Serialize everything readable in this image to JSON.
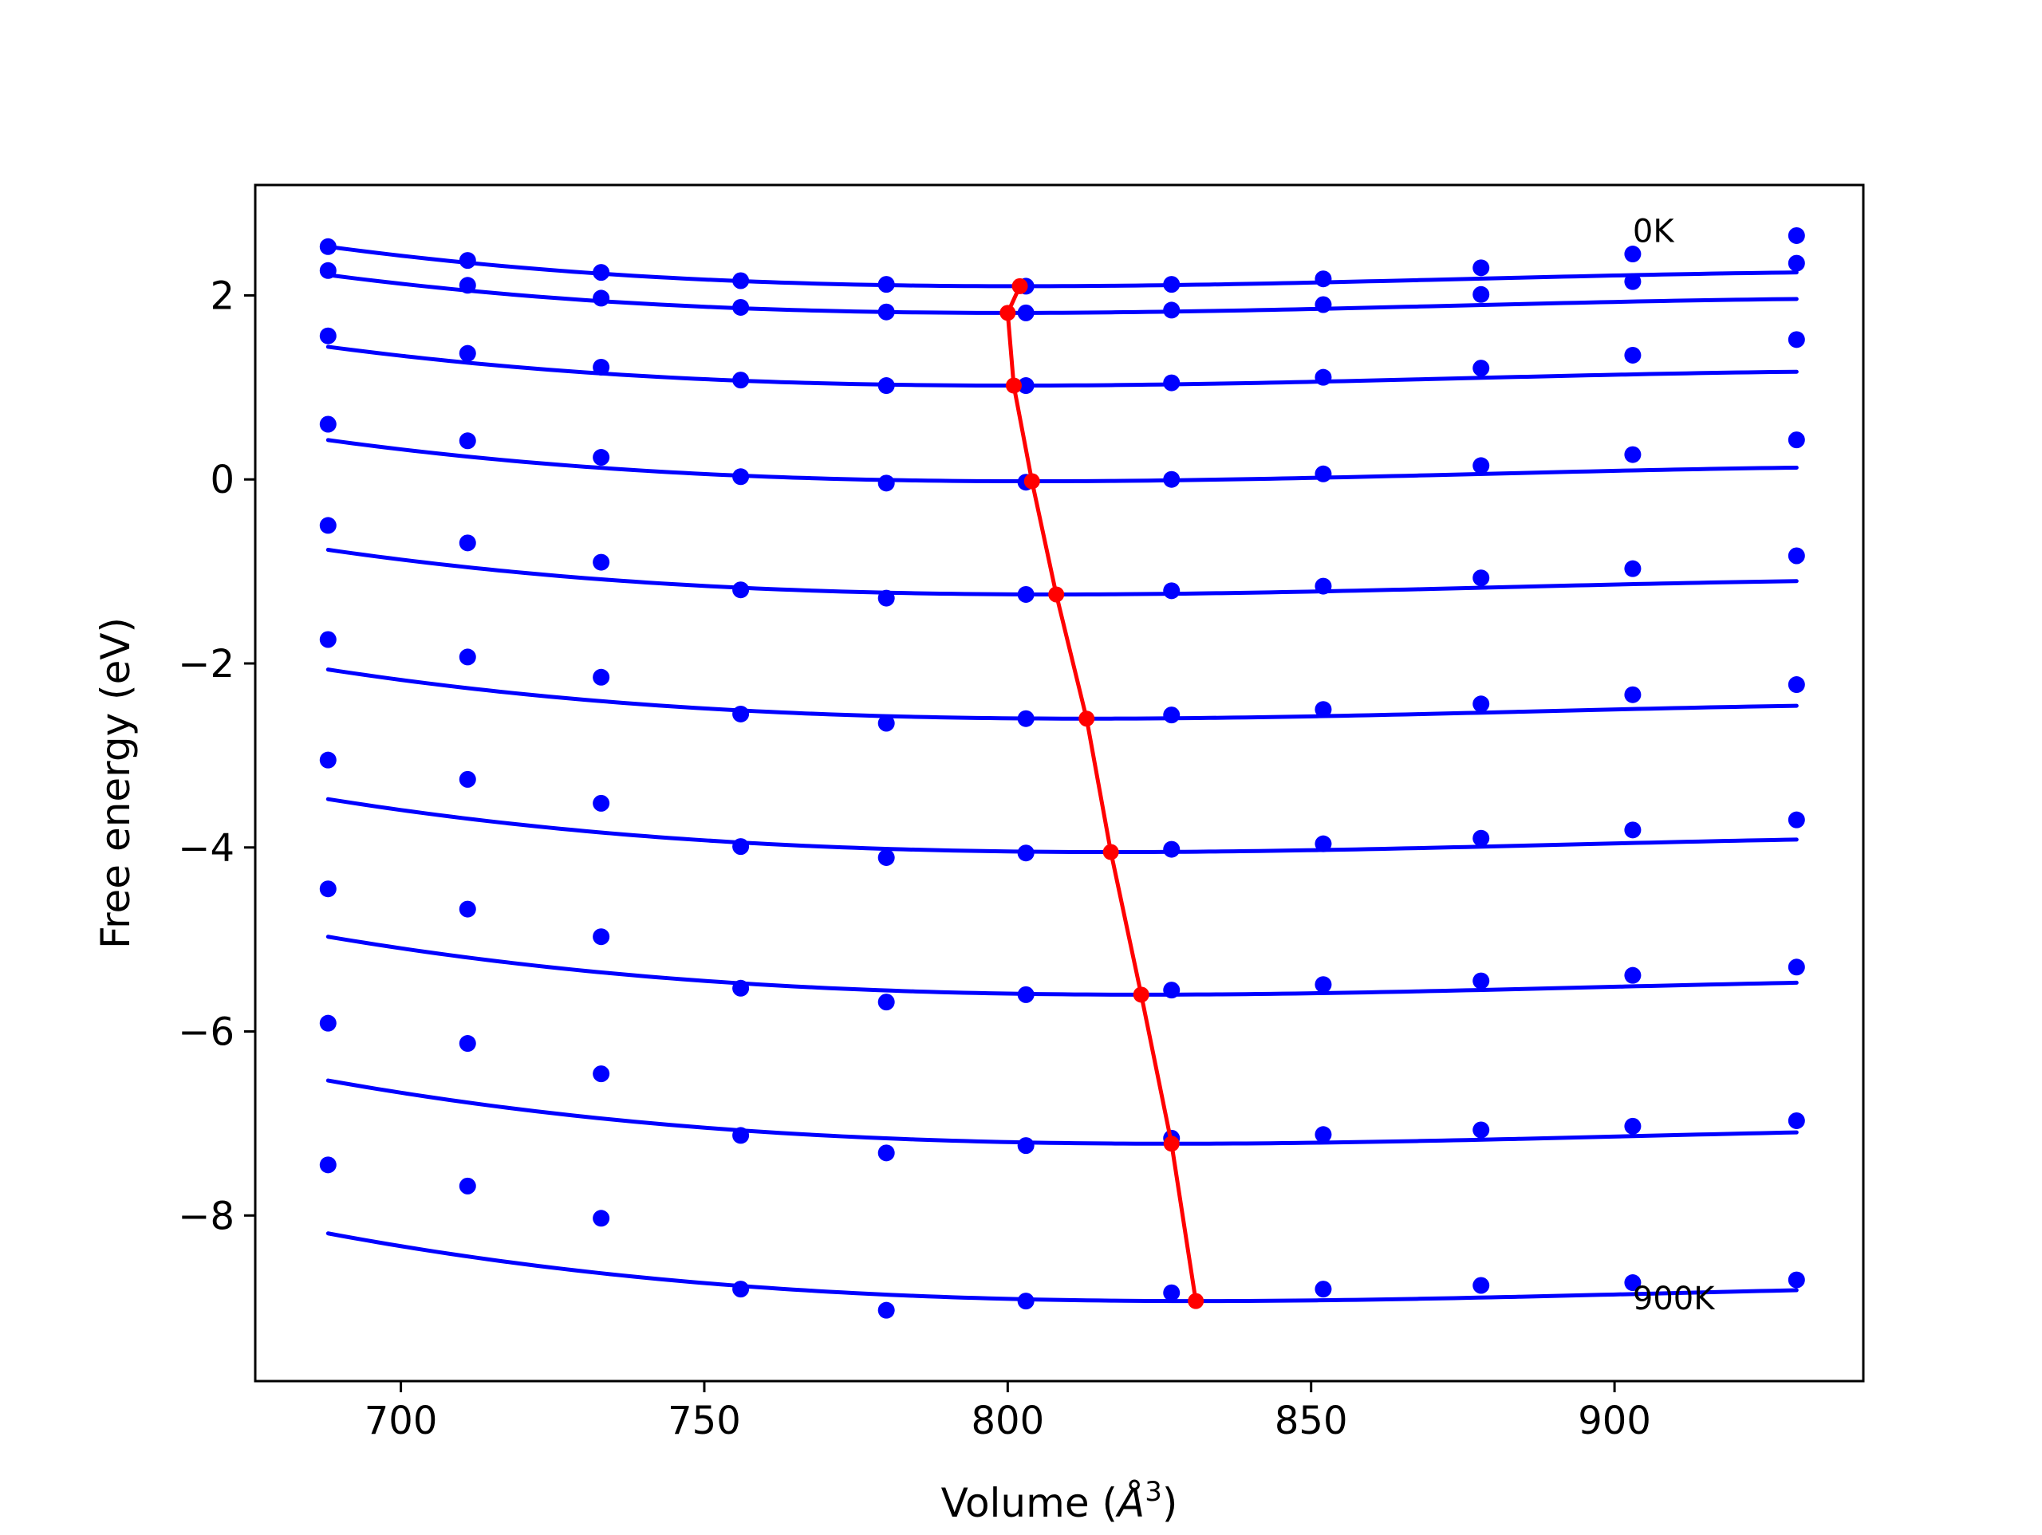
{
  "chart_data": {
    "type": "line",
    "title": "",
    "xlabel": "Volume ($\\AA^3$)",
    "xlabel_display": {
      "prefix": "Volume (",
      "symbol": "Å",
      "superscript": "3",
      "suffix": ")"
    },
    "ylabel": "Free energy (eV)",
    "xlim": [
      676,
      941
    ],
    "ylim": [
      -9.8,
      3.2
    ],
    "xticks": [
      700,
      750,
      800,
      850,
      900
    ],
    "yticks": [
      -8,
      -6,
      -4,
      -2,
      0,
      2
    ],
    "ytick_labels": [
      "−8",
      "−6",
      "−4",
      "−2",
      "0",
      "2"
    ],
    "grid": false,
    "legend": null,
    "colors": {
      "isotherm": "#0000ff",
      "minimum": "#ff0000",
      "axes": "#000000"
    },
    "annotations": [
      {
        "text": "0K",
        "x": 903,
        "y": 2.7
      },
      {
        "text": "900K",
        "x": 903,
        "y": -8.9
      }
    ],
    "x": [
      688,
      711,
      733,
      756,
      780,
      803,
      827,
      852,
      878,
      903,
      930
    ],
    "series": [
      {
        "points": [
          2.53,
          2.38,
          2.25,
          2.16,
          2.12,
          2.1,
          2.12,
          2.18,
          2.3,
          2.45,
          2.65
        ],
        "fit": {
          "vmin": 802,
          "emin": 2.1,
          "curv": 2.18e-05,
          "cub": 9.9e-08
        }
      },
      {
        "points": [
          2.27,
          2.11,
          1.97,
          1.87,
          1.82,
          1.81,
          1.84,
          1.9,
          2.01,
          2.15,
          2.35
        ],
        "fit": {
          "vmin": 800,
          "emin": 1.81,
          "curv": 2.18e-05,
          "cub": 9.9e-08
        }
      },
      {
        "points": [
          1.56,
          1.37,
          1.22,
          1.08,
          1.02,
          1.02,
          1.05,
          1.11,
          1.21,
          1.35,
          1.52
        ],
        "fit": {
          "vmin": 801,
          "emin": 1.02,
          "curv": 2.18e-05,
          "cub": 9.9e-08
        }
      },
      {
        "points": [
          0.6,
          0.42,
          0.24,
          0.03,
          -0.04,
          -0.03,
          0.0,
          0.06,
          0.15,
          0.27,
          0.43
        ],
        "fit": {
          "vmin": 804,
          "emin": -0.02,
          "curv": 2.18e-05,
          "cub": 9.9e-08
        }
      },
      {
        "points": [
          -0.5,
          -0.69,
          -0.9,
          -1.2,
          -1.29,
          -1.25,
          -1.21,
          -1.16,
          -1.07,
          -0.97,
          -0.83
        ],
        "fit": {
          "vmin": 808,
          "emin": -1.25,
          "curv": 2.18e-05,
          "cub": 9.9e-08
        }
      },
      {
        "points": [
          -1.74,
          -1.93,
          -2.15,
          -2.55,
          -2.65,
          -2.6,
          -2.56,
          -2.5,
          -2.44,
          -2.34,
          -2.23
        ],
        "fit": {
          "vmin": 813,
          "emin": -2.6,
          "curv": 2.18e-05,
          "cub": 9.9e-08
        }
      },
      {
        "points": [
          -3.05,
          -3.26,
          -3.52,
          -3.99,
          -4.11,
          -4.06,
          -4.02,
          -3.96,
          -3.9,
          -3.81,
          -3.7
        ],
        "fit": {
          "vmin": 817,
          "emin": -4.05,
          "curv": 2.18e-05,
          "cub": 9.9e-08
        }
      },
      {
        "points": [
          -4.45,
          -4.67,
          -4.97,
          -5.53,
          -5.68,
          -5.6,
          -5.55,
          -5.49,
          -5.45,
          -5.39,
          -5.3
        ],
        "fit": {
          "vmin": 822,
          "emin": -5.6,
          "curv": 2.18e-05,
          "cub": 9.9e-08
        }
      },
      {
        "points": [
          -5.91,
          -6.13,
          -6.46,
          -7.13,
          -7.32,
          -7.24,
          -7.16,
          -7.12,
          -7.07,
          -7.03,
          -6.97
        ],
        "fit": {
          "vmin": 827,
          "emin": -7.22,
          "curv": 2.18e-05,
          "cub": 9.9e-08
        }
      },
      {
        "points": [
          -7.45,
          -7.68,
          -8.03,
          -8.8,
          -9.03,
          -8.93,
          -8.84,
          -8.8,
          -8.76,
          -8.73,
          -8.7
        ],
        "fit": {
          "vmin": 831,
          "emin": -8.93,
          "curv": 2.18e-05,
          "cub": 9.9e-08
        }
      }
    ],
    "minimum_path": {
      "x": [
        802,
        800,
        801,
        804,
        808,
        813,
        817,
        822,
        827,
        831
      ],
      "y": [
        2.1,
        1.81,
        1.02,
        -0.02,
        -1.25,
        -2.6,
        -4.05,
        -5.6,
        -7.22,
        -8.93
      ]
    }
  }
}
